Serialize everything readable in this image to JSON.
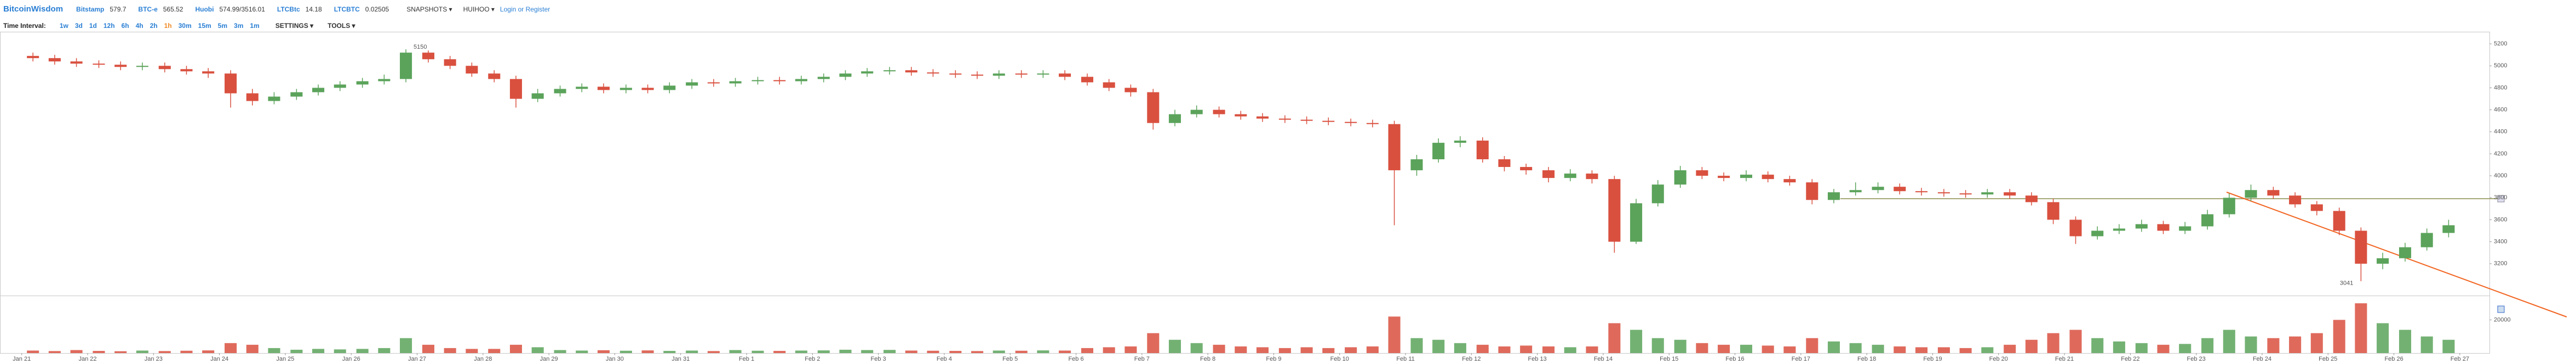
{
  "header": {
    "logo": "BitcoinWisdom",
    "tickers": [
      {
        "name": "Bitstamp",
        "price": "579.7"
      },
      {
        "name": "BTC-e",
        "price": "565.52"
      },
      {
        "name": "Huobi",
        "price": "574.99/3516.01"
      },
      {
        "name": "LTCBtc",
        "price": "14.18"
      },
      {
        "name": "LTCBTC",
        "price": "0.02505"
      }
    ],
    "menus": [
      "SNAPSHOTS ▾",
      "HUIHOO ▾"
    ],
    "login": "Login or Register"
  },
  "toolbar": {
    "label": "Time Interval:",
    "intervals": [
      "1w",
      "3d",
      "1d",
      "12h",
      "6h",
      "4h",
      "2h",
      "1h",
      "30m",
      "15m",
      "5m",
      "3m",
      "1m"
    ],
    "selected": "1h",
    "settings": "SETTINGS ▾",
    "tools": "TOOLS ▾"
  },
  "chart_data": {
    "type": "candlestick",
    "up_color": "#5ba35b",
    "down_color": "#d9503f",
    "grid": false,
    "xlim": [
      -0.33,
      37.45
    ],
    "xticks": [
      {
        "value": 0,
        "label": "Jan 21"
      },
      {
        "value": 1,
        "label": "Jan 22"
      },
      {
        "value": 2,
        "label": "Jan 23"
      },
      {
        "value": 3,
        "label": "Jan 24"
      },
      {
        "value": 4,
        "label": "Jan 25"
      },
      {
        "value": 5,
        "label": "Jan 26"
      },
      {
        "value": 6,
        "label": "Jan 27"
      },
      {
        "value": 7,
        "label": "Jan 28"
      },
      {
        "value": 8,
        "label": "Jan 29"
      },
      {
        "value": 9,
        "label": "Jan 30"
      },
      {
        "value": 10,
        "label": "Jan 31"
      },
      {
        "value": 11,
        "label": "Feb 1"
      },
      {
        "value": 12,
        "label": "Feb 2"
      },
      {
        "value": 13,
        "label": "Feb 3"
      },
      {
        "value": 14,
        "label": "Feb 4"
      },
      {
        "value": 15,
        "label": "Feb 5"
      },
      {
        "value": 16,
        "label": "Feb 6"
      },
      {
        "value": 17,
        "label": "Feb 7"
      },
      {
        "value": 18,
        "label": "Feb 8"
      },
      {
        "value": 19,
        "label": "Feb 9"
      },
      {
        "value": 20,
        "label": "Feb 10"
      },
      {
        "value": 21,
        "label": "Feb 11"
      },
      {
        "value": 22,
        "label": "Feb 12"
      },
      {
        "value": 23,
        "label": "Feb 13"
      },
      {
        "value": 24,
        "label": "Feb 14"
      },
      {
        "value": 25,
        "label": "Feb 15"
      },
      {
        "value": 26,
        "label": "Feb 16"
      },
      {
        "value": 27,
        "label": "Feb 17"
      },
      {
        "value": 28,
        "label": "Feb 18"
      },
      {
        "value": 29,
        "label": "Feb 19"
      },
      {
        "value": 30,
        "label": "Feb 20"
      },
      {
        "value": 31,
        "label": "Feb 21"
      },
      {
        "value": 32,
        "label": "Feb 22"
      },
      {
        "value": 33,
        "label": "Feb 23"
      },
      {
        "value": 34,
        "label": "Feb 24"
      },
      {
        "value": 35,
        "label": "Feb 25"
      },
      {
        "value": 36,
        "label": "Feb 26"
      },
      {
        "value": 37,
        "label": "Feb 27"
      }
    ],
    "ylim": [
      2960,
      5300
    ],
    "yticks": [
      5200,
      5000,
      4800,
      4600,
      4400,
      4200,
      4000,
      3800,
      3600,
      3400,
      3200
    ],
    "volume_ylim": [
      0,
      33000
    ],
    "volume_yticks": [
      20000
    ],
    "x": [
      0.17,
      0.5,
      0.83,
      1.17,
      1.5,
      1.83,
      2.17,
      2.5,
      2.83,
      3.17,
      3.5,
      3.83,
      4.17,
      4.5,
      4.83,
      5.17,
      5.5,
      5.83,
      6.17,
      6.5,
      6.83,
      7.17,
      7.5,
      7.83,
      8.17,
      8.5,
      8.83,
      9.17,
      9.5,
      9.83,
      10.17,
      10.5,
      10.83,
      11.17,
      11.5,
      11.83,
      12.17,
      12.5,
      12.83,
      13.17,
      13.5,
      13.83,
      14.17,
      14.5,
      14.83,
      15.17,
      15.5,
      15.83,
      16.17,
      16.5,
      16.83,
      17.17,
      17.5,
      17.83,
      18.17,
      18.5,
      18.83,
      19.17,
      19.5,
      19.83,
      20.17,
      20.5,
      20.83,
      21.17,
      21.5,
      21.83,
      22.17,
      22.5,
      22.83,
      23.17,
      23.5,
      23.83,
      24.17,
      24.5,
      24.83,
      25.17,
      25.5,
      25.83,
      26.17,
      26.5,
      26.83,
      27.17,
      27.5,
      27.83,
      28.17,
      28.5,
      28.83,
      29.17,
      29.5,
      29.83,
      30.17,
      30.5,
      30.83,
      31.17,
      31.5,
      31.83,
      32.17,
      32.5,
      32.83,
      33.17,
      33.5,
      33.83,
      34.17,
      34.5,
      34.83,
      35.17,
      35.5,
      35.83,
      36.17,
      36.5,
      36.83
    ],
    "open": [
      5090,
      5070,
      5040,
      5020,
      5010,
      4990,
      5000,
      4970,
      4950,
      4930,
      4750,
      4680,
      4720,
      4760,
      4800,
      4830,
      4860,
      4880,
      5120,
      5060,
      5000,
      4930,
      4880,
      4700,
      4750,
      4790,
      4810,
      4780,
      4800,
      4780,
      4820,
      4850,
      4840,
      4860,
      4870,
      4860,
      4880,
      4900,
      4930,
      4950,
      4960,
      4940,
      4930,
      4920,
      4910,
      4930,
      4920,
      4930,
      4900,
      4850,
      4800,
      4760,
      4480,
      4560,
      4600,
      4560,
      4540,
      4520,
      4510,
      4500,
      4490,
      4480,
      4470,
      4050,
      4150,
      4300,
      4320,
      4150,
      4080,
      4050,
      3980,
      4020,
      3970,
      3400,
      3750,
      3920,
      4050,
      4000,
      3980,
      4010,
      3970,
      3940,
      3780,
      3850,
      3870,
      3900,
      3860,
      3850,
      3840,
      3830,
      3850,
      3820,
      3760,
      3600,
      3450,
      3500,
      3520,
      3560,
      3500,
      3540,
      3650,
      3800,
      3870,
      3820,
      3740,
      3680,
      3500,
      3200,
      3250,
      3350,
      3480
    ],
    "high": [
      5120,
      5100,
      5070,
      5050,
      5040,
      5030,
      5030,
      5000,
      4980,
      4960,
      4790,
      4760,
      4790,
      4830,
      4860,
      4890,
      4920,
      5150,
      5140,
      5090,
      5030,
      4960,
      4910,
      4790,
      4820,
      4840,
      4840,
      4830,
      4830,
      4850,
      4880,
      4880,
      4890,
      4900,
      4900,
      4910,
      4930,
      4960,
      4980,
      4990,
      4990,
      4970,
      4960,
      4950,
      4960,
      4960,
      4960,
      4960,
      4930,
      4880,
      4830,
      4790,
      4600,
      4640,
      4630,
      4590,
      4570,
      4550,
      4540,
      4530,
      4520,
      4510,
      4500,
      4190,
      4340,
      4360,
      4350,
      4180,
      4110,
      4080,
      4060,
      4050,
      4000,
      3790,
      3960,
      4090,
      4080,
      4030,
      4050,
      4040,
      4000,
      3970,
      3880,
      3940,
      3940,
      3930,
      3890,
      3880,
      3870,
      3880,
      3880,
      3850,
      3790,
      3630,
      3540,
      3560,
      3600,
      3590,
      3580,
      3690,
      3840,
      3920,
      3900,
      3850,
      3770,
      3710,
      3530,
      3300,
      3390,
      3520,
      3600
    ],
    "low": [
      5040,
      5010,
      4990,
      4980,
      4960,
      4960,
      4940,
      4920,
      4890,
      4620,
      4640,
      4650,
      4690,
      4730,
      4770,
      4800,
      4830,
      4850,
      5030,
      4970,
      4900,
      4850,
      4620,
      4670,
      4720,
      4760,
      4750,
      4750,
      4750,
      4750,
      4790,
      4810,
      4810,
      4830,
      4830,
      4830,
      4850,
      4870,
      4900,
      4920,
      4910,
      4900,
      4890,
      4880,
      4880,
      4890,
      4890,
      4870,
      4820,
      4770,
      4720,
      4420,
      4450,
      4530,
      4530,
      4510,
      4490,
      4480,
      4470,
      4460,
      4450,
      4440,
      3550,
      4000,
      4120,
      4260,
      4120,
      4040,
      4010,
      3940,
      3950,
      3930,
      3300,
      3380,
      3720,
      3890,
      3970,
      3950,
      3950,
      3940,
      3910,
      3740,
      3750,
      3820,
      3840,
      3830,
      3820,
      3810,
      3800,
      3800,
      3790,
      3730,
      3560,
      3380,
      3420,
      3470,
      3490,
      3470,
      3470,
      3510,
      3620,
      3770,
      3790,
      3710,
      3640,
      3460,
      3041,
      3150,
      3220,
      3320,
      3440
    ],
    "close": [
      5070,
      5040,
      5020,
      5010,
      4990,
      5000,
      4970,
      4950,
      4930,
      4750,
      4680,
      4720,
      4760,
      4800,
      4830,
      4860,
      4880,
      5120,
      5060,
      5000,
      4930,
      4880,
      4700,
      4750,
      4790,
      4810,
      4780,
      4800,
      4780,
      4820,
      4850,
      4840,
      4860,
      4870,
      4860,
      4880,
      4900,
      4930,
      4950,
      4960,
      4940,
      4930,
      4920,
      4910,
      4930,
      4920,
      4930,
      4900,
      4850,
      4800,
      4760,
      4480,
      4560,
      4600,
      4560,
      4540,
      4520,
      4510,
      4500,
      4490,
      4480,
      4470,
      4050,
      4150,
      4300,
      4320,
      4150,
      4080,
      4050,
      3980,
      4020,
      3970,
      3400,
      3750,
      3920,
      4050,
      4000,
      3980,
      4010,
      3970,
      3940,
      3780,
      3850,
      3870,
      3900,
      3860,
      3850,
      3840,
      3830,
      3850,
      3820,
      3760,
      3600,
      3450,
      3500,
      3520,
      3560,
      3500,
      3540,
      3650,
      3800,
      3870,
      3820,
      3740,
      3680,
      3500,
      3200,
      3250,
      3350,
      3480,
      3550
    ],
    "volume": [
      1500,
      1200,
      1800,
      1300,
      1100,
      1500,
      1200,
      1400,
      1600,
      6000,
      5000,
      3000,
      2000,
      2500,
      2200,
      2500,
      3000,
      9000,
      5000,
      3000,
      2500,
      2500,
      5000,
      3500,
      1800,
      1500,
      1700,
      1400,
      1600,
      1300,
      1500,
      1200,
      1800,
      1400,
      1300,
      1500,
      1600,
      2000,
      1800,
      1900,
      1500,
      1400,
      1300,
      1200,
      1500,
      1400,
      1600,
      1500,
      3000,
      3500,
      4000,
      12000,
      8000,
      6000,
      5000,
      4000,
      3500,
      3000,
      3500,
      3000,
      3500,
      4000,
      22000,
      9000,
      8000,
      6000,
      5000,
      4000,
      4500,
      4000,
      3500,
      4000,
      18000,
      14000,
      9000,
      8000,
      6000,
      5000,
      5000,
      4500,
      4000,
      9000,
      7000,
      6000,
      5000,
      4000,
      3500,
      3500,
      3000,
      3500,
      5000,
      8000,
      12000,
      14000,
      9000,
      7000,
      6000,
      5000,
      5500,
      9000,
      14000,
      10000,
      9000,
      10000,
      12000,
      20000,
      30000,
      18000,
      14000,
      10000,
      8000
    ]
  }
}
